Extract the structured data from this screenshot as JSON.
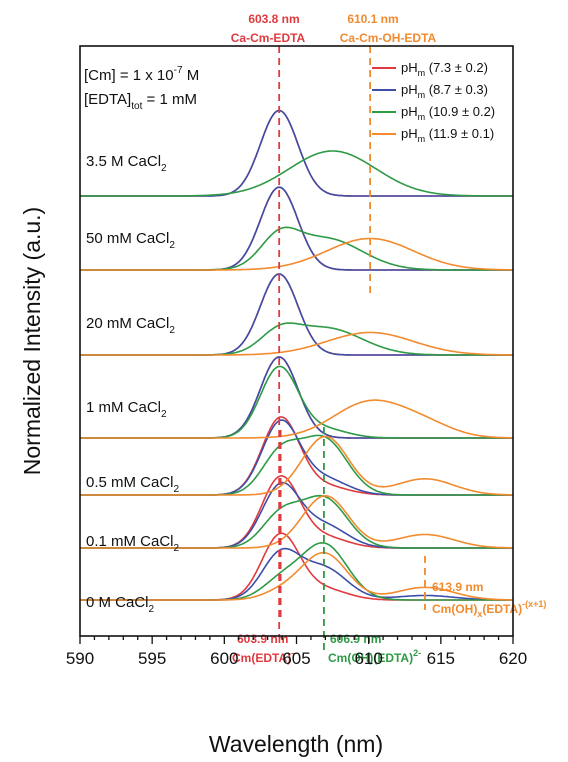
{
  "chart_data": {
    "type": "line",
    "xlabel": "Wavelength (nm)",
    "ylabel": "Normalized Intensity (a.u.)",
    "xlim": [
      590,
      620
    ],
    "xticks": [
      590,
      595,
      600,
      605,
      610,
      615,
      620
    ],
    "info": {
      "line1_prefix": "[Cm] = 1 x 10",
      "line1_exp": "-7",
      "line1_suffix": " M",
      "line2_prefix": "[EDTA]",
      "line2_sub": "tot",
      "line2_suffix": " = 1 mM"
    },
    "legend": [
      {
        "prefix": "pH",
        "sub": "m",
        "value": " (7.3 ± 0.2)",
        "color": "#e03a3e"
      },
      {
        "prefix": "pH",
        "sub": "m",
        "value": " (8.7 ± 0.3)",
        "color": "#3d4ea8"
      },
      {
        "prefix": "pH",
        "sub": "m",
        "value": " (10.9 ± 0.2)",
        "color": "#2e9a45"
      },
      {
        "prefix": "pH",
        "sub": "m",
        "value": " (11.9 ± 0.1)",
        "color": "#f28a2e"
      }
    ],
    "conditions": [
      {
        "label": "0 M CaCl",
        "sub": "2"
      },
      {
        "label": "0.1 mM CaCl",
        "sub": "2"
      },
      {
        "label": "0.5 mM CaCl",
        "sub": "2"
      },
      {
        "label": "1 mM CaCl",
        "sub": "2"
      },
      {
        "label": "20 mM CaCl",
        "sub": "2"
      },
      {
        "label": "50 mM CaCl",
        "sub": "2"
      },
      {
        "label": "3.5 M CaCl",
        "sub": "2"
      }
    ],
    "peak_lines": [
      {
        "x": 603.8,
        "color": "#e03a3e"
      },
      {
        "x": 610.1,
        "color": "#f28a2e"
      },
      {
        "x": 603.9,
        "color": "#e03a3e"
      },
      {
        "x": 606.9,
        "color": "#2e9a45"
      },
      {
        "x": 613.9,
        "color": "#f28a2e"
      }
    ],
    "peak_annotations": [
      {
        "wavelength": "603.8 nm",
        "species": "Ca-Cm-EDTA",
        "color": "#e03a3e"
      },
      {
        "wavelength": "610.1 nm",
        "species": "Ca-Cm-OH-EDTA",
        "color": "#f28a2e"
      },
      {
        "wavelength": "603.9 nm",
        "species_main": "Cm(EDTA)",
        "species_sup": "-",
        "color": "#e03a3e"
      },
      {
        "wavelength": "606.9 nm",
        "species_main": "Cm(OH)(EDTA)",
        "species_sup": "2-",
        "color": "#2e9a45"
      },
      {
        "wavelength": "613.9 nm",
        "species_main": "Cm(OH)",
        "species_sub": "x",
        "species_main2": "(EDTA)",
        "species_sup": "-(x+1)",
        "color": "#f28a2e"
      }
    ],
    "series": [
      {
        "name": "pHm (7.3 ± 0.2)",
        "color": "#e03a3e",
        "traces": [
          {
            "condition": "0 M CaCl2",
            "peaks": [
              [
                603.9,
                0.72,
                1.3
              ],
              [
                606.9,
                0.12,
                1.6
              ]
            ]
          },
          {
            "condition": "0.1 mM CaCl2",
            "peaks": [
              [
                603.9,
                0.78,
                1.3
              ],
              [
                606.9,
                0.12,
                1.6
              ]
            ]
          },
          {
            "condition": "0.5 mM CaCl2",
            "peaks": [
              [
                603.9,
                0.85,
                1.3
              ],
              [
                606.9,
                0.1,
                1.6
              ]
            ]
          },
          {
            "condition": "1 mM CaCl2",
            "peaks": [
              [
                603.8,
                0.9,
                1.3
              ]
            ]
          },
          {
            "condition": "20 mM CaCl2",
            "peaks": [
              [
                603.8,
                0.9,
                1.3
              ]
            ]
          },
          {
            "condition": "50 mM CaCl2",
            "peaks": [
              [
                603.8,
                0.92,
                1.3
              ]
            ]
          },
          {
            "condition": "3.5 M CaCl2",
            "peaks": [
              [
                603.8,
                0.95,
                1.3
              ]
            ]
          }
        ]
      },
      {
        "name": "pHm (8.7 ± 0.3)",
        "color": "#3d4ea8",
        "traces": [
          {
            "condition": "0 M CaCl2",
            "peaks": [
              [
                603.9,
                0.5,
                1.3
              ],
              [
                606.9,
                0.35,
                1.6
              ],
              [
                613.9,
                0.05,
                2.0
              ]
            ]
          },
          {
            "condition": "0.1 mM CaCl2",
            "peaks": [
              [
                603.9,
                0.68,
                1.3
              ],
              [
                606.9,
                0.25,
                1.6
              ]
            ]
          },
          {
            "condition": "0.5 mM CaCl2",
            "peaks": [
              [
                603.9,
                0.8,
                1.3
              ],
              [
                606.9,
                0.18,
                1.6
              ]
            ]
          },
          {
            "condition": "1 mM CaCl2",
            "peaks": [
              [
                603.8,
                0.9,
                1.3
              ]
            ]
          },
          {
            "condition": "20 mM CaCl2",
            "peaks": [
              [
                603.8,
                0.9,
                1.3
              ]
            ]
          },
          {
            "condition": "50 mM CaCl2",
            "peaks": [
              [
                603.8,
                0.92,
                1.3
              ]
            ]
          },
          {
            "condition": "3.5 M CaCl2",
            "peaks": [
              [
                603.8,
                0.95,
                1.3
              ]
            ]
          }
        ]
      },
      {
        "name": "pHm (10.9 ± 0.2)",
        "color": "#2e9a45",
        "traces": [
          {
            "condition": "0 M CaCl2",
            "peaks": [
              [
                603.9,
                0.2,
                1.3
              ],
              [
                606.9,
                0.62,
                1.6
              ]
            ]
          },
          {
            "condition": "0.1 mM CaCl2",
            "peaks": [
              [
                603.9,
                0.35,
                1.3
              ],
              [
                606.9,
                0.55,
                1.6
              ]
            ]
          },
          {
            "condition": "0.5 mM CaCl2",
            "peaks": [
              [
                603.9,
                0.45,
                1.3
              ],
              [
                606.9,
                0.62,
                1.6
              ]
            ]
          },
          {
            "condition": "1 mM CaCl2",
            "peaks": [
              [
                603.8,
                0.78,
                1.3
              ],
              [
                606.9,
                0.1,
                1.6
              ]
            ]
          },
          {
            "condition": "20 mM CaCl2",
            "peaks": [
              [
                603.8,
                0.2,
                1.3
              ],
              [
                607.0,
                0.3,
                2.5
              ]
            ]
          },
          {
            "condition": "50 mM CaCl2",
            "peaks": [
              [
                603.8,
                0.3,
                1.3
              ],
              [
                607.0,
                0.35,
                2.5
              ]
            ]
          },
          {
            "condition": "3.5 M CaCl2",
            "peaks": [
              [
                607.5,
                0.5,
                3.0
              ]
            ]
          }
        ]
      },
      {
        "name": "pHm (11.9 ± 0.1)",
        "color": "#f28a2e",
        "traces": [
          {
            "condition": "0 M CaCl2",
            "peaks": [
              [
                606.9,
                0.52,
                1.6
              ],
              [
                613.9,
                0.14,
                2.0
              ],
              [
                603.9,
                0.08,
                1.3
              ]
            ]
          },
          {
            "condition": "0.1 mM CaCl2",
            "peaks": [
              [
                607.0,
                0.58,
                1.6
              ],
              [
                613.9,
                0.15,
                2.0
              ]
            ]
          },
          {
            "condition": "0.5 mM CaCl2",
            "peaks": [
              [
                607.0,
                0.65,
                1.6
              ],
              [
                613.9,
                0.18,
                2.0
              ]
            ]
          },
          {
            "condition": "1 mM CaCl2",
            "peaks": [
              [
                610.1,
                0.4,
                2.5
              ],
              [
                614.0,
                0.12,
                2.0
              ]
            ]
          },
          {
            "condition": "20 mM CaCl2",
            "peaks": [
              [
                610.1,
                0.25,
                3.0
              ]
            ]
          },
          {
            "condition": "50 mM CaCl2",
            "peaks": [
              [
                610.1,
                0.35,
                3.0
              ]
            ]
          }
        ]
      }
    ]
  }
}
